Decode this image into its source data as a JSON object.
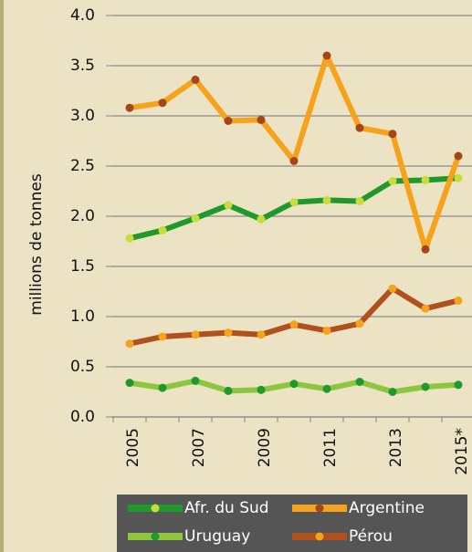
{
  "chart_data": {
    "type": "line",
    "y_label": "millions de tonnes",
    "categories": [
      "2005",
      null,
      "2007",
      null,
      "2009",
      null,
      "2011",
      null,
      "2013",
      null,
      "2015*"
    ],
    "series": [
      {
        "name": "Afr. du Sud",
        "color": "#1e9a2c",
        "marker_color": "#c8dc3c",
        "values": [
          1.78,
          1.86,
          1.98,
          2.11,
          1.97,
          2.14,
          2.16,
          2.15,
          2.35,
          2.36,
          2.38
        ]
      },
      {
        "name": "Argentine",
        "color": "#f7a21b",
        "marker_color": "#a3461a",
        "values": [
          3.08,
          3.13,
          3.36,
          2.95,
          2.96,
          2.55,
          3.6,
          2.88,
          2.82,
          1.67,
          2.6
        ]
      },
      {
        "name": "Uruguay",
        "color": "#8cc63f",
        "marker_color": "#1e9a2c",
        "values": [
          0.34,
          0.29,
          0.36,
          0.26,
          0.27,
          0.33,
          0.28,
          0.35,
          0.25,
          0.3,
          0.32
        ]
      },
      {
        "name": "Pérou",
        "color": "#b0501c",
        "marker_color": "#f7a21b",
        "values": [
          0.73,
          0.8,
          0.82,
          0.84,
          0.82,
          0.92,
          0.86,
          0.93,
          1.28,
          1.08,
          1.16
        ]
      }
    ],
    "ylim": [
      0,
      4
    ],
    "yticks": [
      {
        "value": 0,
        "label": "0.0"
      },
      0.5,
      {
        "value": 1,
        "label": "1.0"
      },
      1.5,
      {
        "value": 2,
        "label": "2.0"
      },
      2.5,
      {
        "value": 3,
        "label": "3.0"
      },
      3.5,
      {
        "value": 4,
        "label": "4.0"
      }
    ],
    "grid": true,
    "legend": "bottom"
  }
}
